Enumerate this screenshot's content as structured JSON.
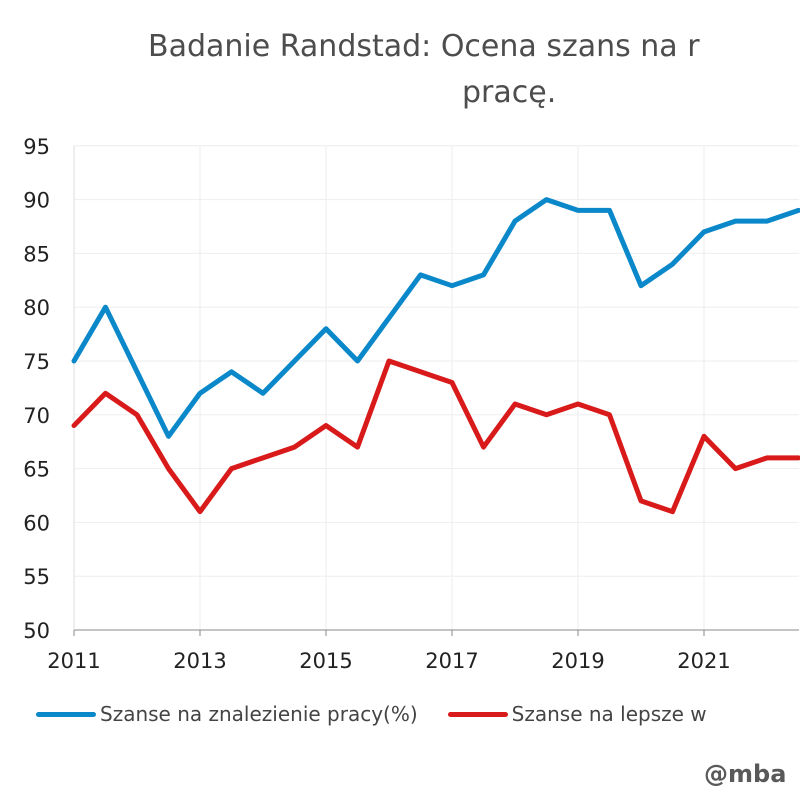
{
  "chart_data": {
    "type": "line",
    "title_line1": "Badanie Randstad: Ocena szans na r",
    "title_line2": "pracę.",
    "x": [
      2011,
      2011.5,
      2012,
      2012.5,
      2013,
      2013.5,
      2014,
      2014.5,
      2015,
      2015.5,
      2016,
      2016.5,
      2017,
      2017.5,
      2018,
      2018.5,
      2019,
      2019.5,
      2020,
      2020.5,
      2021,
      2021.5,
      2022,
      2022.5
    ],
    "series": [
      {
        "name": "Szanse na znalezienie pracy(%)",
        "color": "#0a88c9",
        "values": [
          75,
          80,
          74,
          68,
          72,
          74,
          72,
          75,
          78,
          75,
          79,
          83,
          82,
          83,
          88,
          90,
          89,
          89,
          82,
          84,
          87,
          88,
          88,
          89
        ]
      },
      {
        "name": "Szanse na lepsze w",
        "color": "#d91a1a",
        "values": [
          69,
          72,
          70,
          65,
          61,
          65,
          66,
          67,
          69,
          67,
          75,
          74,
          73,
          67,
          71,
          70,
          71,
          70,
          62,
          61,
          68,
          65,
          66,
          66
        ]
      }
    ],
    "xticks": [
      2011,
      2013,
      2015,
      2017,
      2019,
      2021
    ],
    "yticks": [
      50,
      55,
      60,
      65,
      70,
      75,
      80,
      85,
      90,
      95
    ],
    "xlim": [
      2011,
      2022.8
    ],
    "ylim": [
      50,
      95
    ],
    "grid": true,
    "legend_placement": "bottom",
    "watermark": "@mba"
  }
}
